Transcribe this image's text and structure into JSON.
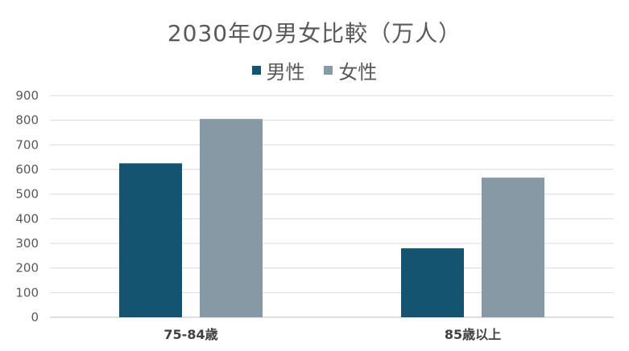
{
  "chart_data": {
    "type": "bar",
    "title": "2030年の男女比較（万人）",
    "categories": [
      "75-84歳",
      "85歳以上"
    ],
    "series": [
      {
        "name": "男性",
        "color": "#145470",
        "values": [
          625,
          280
        ]
      },
      {
        "name": "女性",
        "color": "#8899A6",
        "values": [
          805,
          567
        ]
      }
    ],
    "ylim": [
      0,
      900
    ],
    "yticks": [
      0,
      100,
      200,
      300,
      400,
      500,
      600,
      700,
      800,
      900
    ],
    "grid": true,
    "legend_position": "top"
  }
}
